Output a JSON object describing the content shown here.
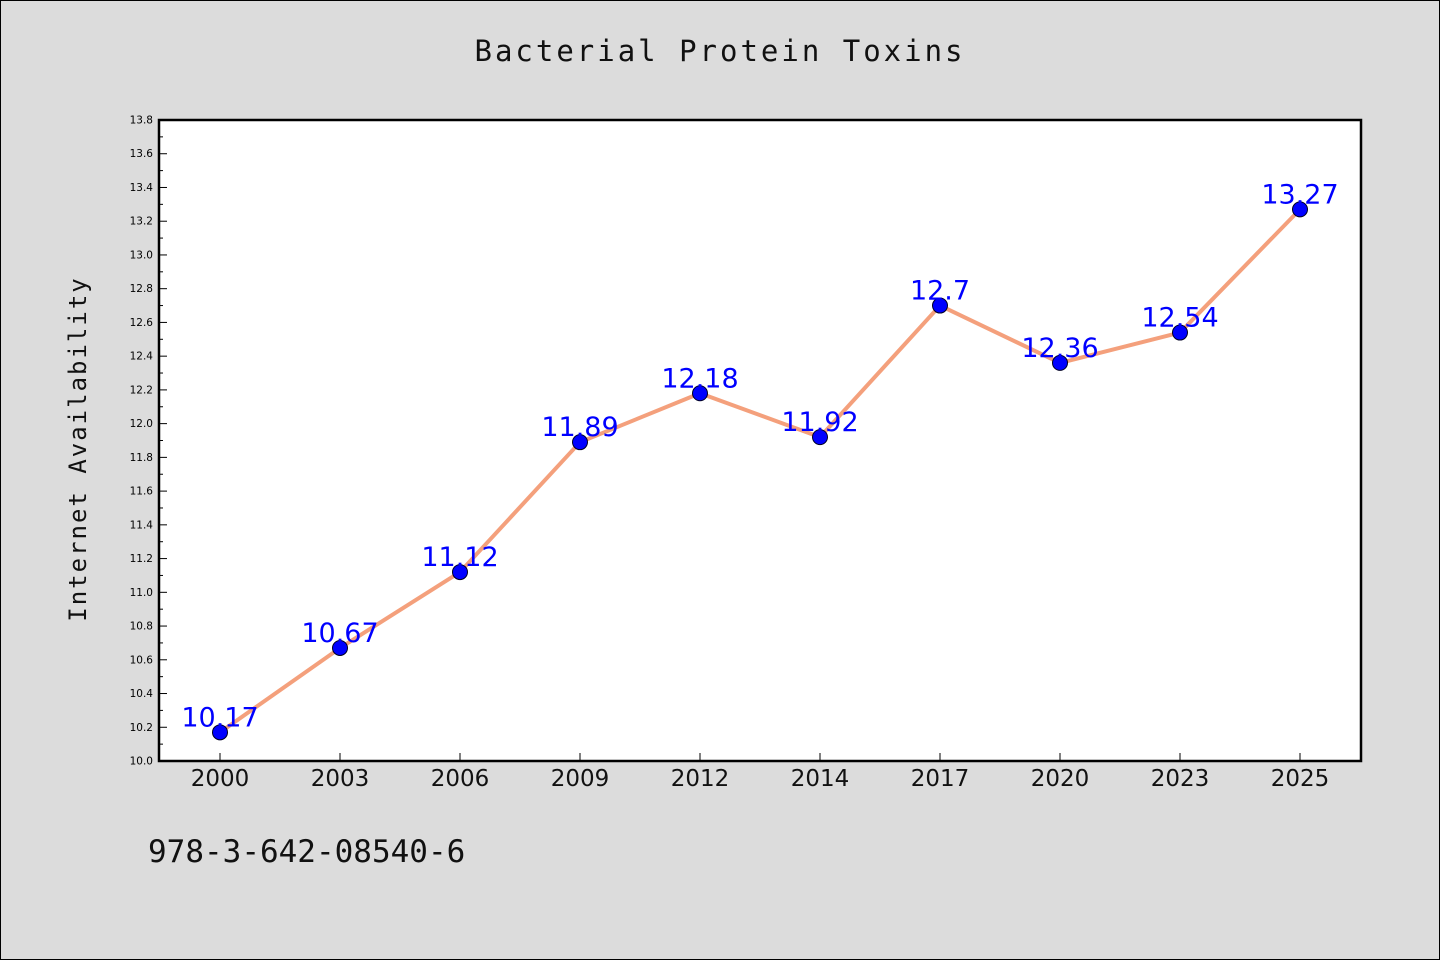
{
  "chart_data": {
    "type": "line",
    "title": "Bacterial Protein Toxins",
    "ylabel": "Internet Availability",
    "xlabel": "",
    "categories": [
      "2000",
      "2003",
      "2006",
      "2009",
      "2012",
      "2014",
      "2017",
      "2020",
      "2023",
      "2025"
    ],
    "series": [
      {
        "values": [
          10.17,
          10.67,
          11.12,
          11.89,
          12.18,
          11.92,
          12.7,
          12.36,
          12.54,
          13.27
        ],
        "labels": [
          "10.17",
          "10.67",
          "11.12",
          "11.89",
          "12.18",
          "11.92",
          "12.7",
          "12.36",
          "12.54",
          "13.27"
        ],
        "line_color": "#f4a07c",
        "marker_color": "#0000ff",
        "label_color": "#0000ff"
      }
    ],
    "ylim": [
      10.0,
      13.8
    ],
    "yticks": [
      "10.0",
      "10.2",
      "10.4",
      "10.6",
      "10.8",
      "11.0",
      "11.2",
      "11.4",
      "11.6",
      "11.8",
      "12.0",
      "12.2",
      "12.4",
      "12.6",
      "12.8",
      "13.0",
      "13.2",
      "13.4",
      "13.6",
      "13.8"
    ],
    "grid": false,
    "legend": "none"
  },
  "footer": {
    "isbn": "978-3-642-08540-6"
  },
  "colors": {
    "background": "#dcdcdc",
    "plot_background": "#ffffff"
  }
}
